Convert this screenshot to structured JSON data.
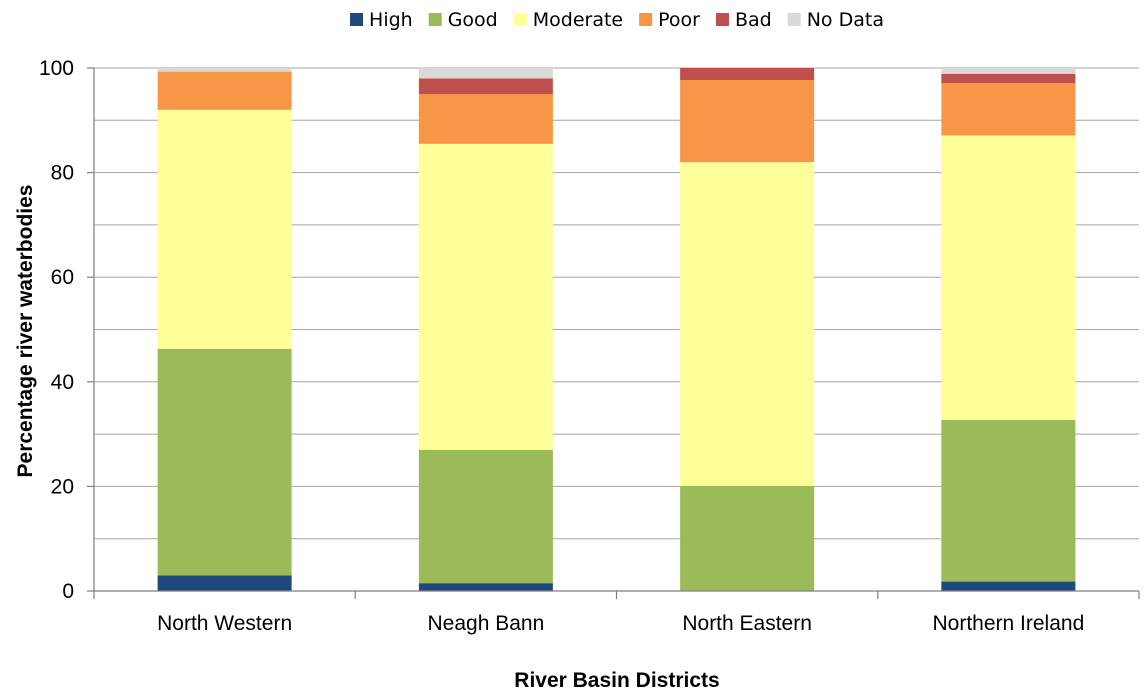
{
  "chart_data": {
    "type": "bar",
    "stacked": true,
    "categories": [
      "North Western",
      "Neagh Bann",
      "North Eastern",
      "Northern Ireland"
    ],
    "series": [
      {
        "name": "High",
        "color": "#1F497D",
        "values": [
          3.0,
          1.5,
          0.0,
          1.8
        ]
      },
      {
        "name": "Good",
        "color": "#9BBB59",
        "values": [
          43.3,
          25.5,
          20.1,
          30.9
        ]
      },
      {
        "name": "Moderate",
        "color": "#FFFF99",
        "values": [
          45.7,
          58.5,
          61.9,
          54.4
        ]
      },
      {
        "name": "Poor",
        "color": "#F79646",
        "values": [
          7.3,
          9.5,
          15.7,
          10.0
        ]
      },
      {
        "name": "Bad",
        "color": "#C0504D",
        "values": [
          0.0,
          3.0,
          2.3,
          1.8
        ]
      },
      {
        "name": "No Data",
        "color": "#D9D9D9",
        "values": [
          0.7,
          2.0,
          0.0,
          1.1
        ]
      }
    ],
    "xlabel": "River Basin Districts",
    "ylabel": "Percentage river waterbodies",
    "ylim": [
      0,
      100
    ],
    "yticks": [
      0,
      20,
      40,
      60,
      80,
      100
    ],
    "grid": true,
    "legend": "top"
  }
}
